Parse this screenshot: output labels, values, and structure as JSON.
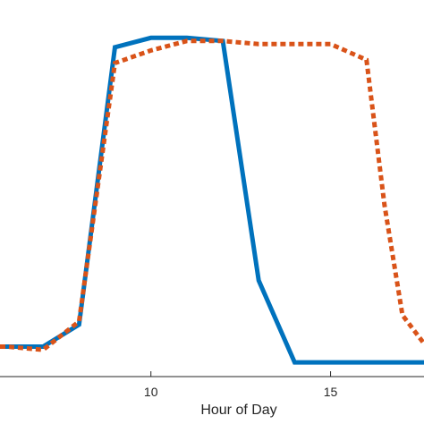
{
  "chart_data": {
    "type": "line",
    "xlabel": "Hour of Day",
    "ylabel": "",
    "title": "",
    "xlim": [
      5.8,
      17.6
    ],
    "ylim": [
      -0.045,
      1.15
    ],
    "x_ticks": [
      10,
      15
    ],
    "series": [
      {
        "style": "solid",
        "color": "#0072BD",
        "x": [
          5.8,
          6,
          7,
          8,
          9,
          10,
          11,
          12,
          13,
          14,
          15,
          16,
          17,
          17.6
        ],
        "y": [
          0.05,
          0.05,
          0.05,
          0.12,
          1.0,
          1.03,
          1.03,
          1.02,
          0.26,
          0.0,
          0.0,
          0.0,
          0.0,
          0.0
        ]
      },
      {
        "style": "dotted",
        "color": "#D95319",
        "x": [
          5.8,
          6,
          7,
          8,
          9,
          10,
          11,
          12,
          13,
          14,
          15,
          16,
          16.5,
          17,
          17.6
        ],
        "y": [
          0.05,
          0.05,
          0.04,
          0.13,
          0.95,
          0.99,
          1.02,
          1.02,
          1.01,
          1.01,
          1.01,
          0.96,
          0.5,
          0.15,
          0.06
        ]
      }
    ]
  }
}
